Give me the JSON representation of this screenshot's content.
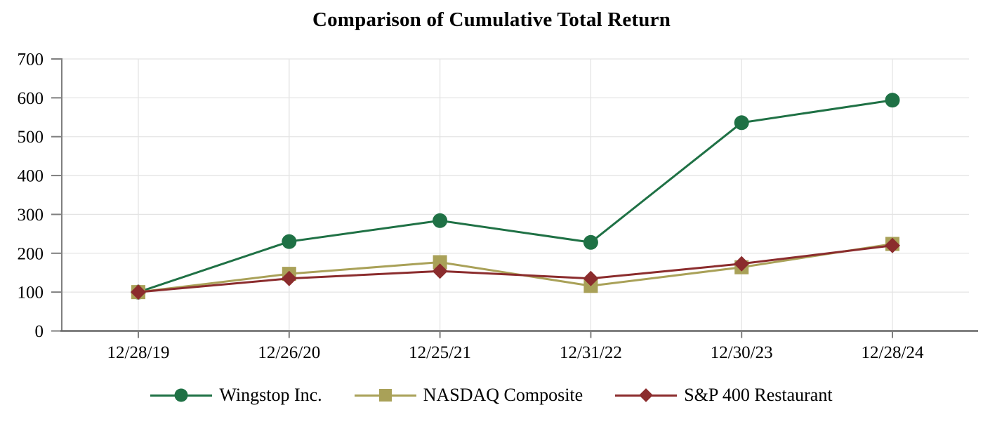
{
  "title": "Comparison of Cumulative Total Return",
  "chart_data": {
    "type": "line",
    "title": "Comparison of Cumulative Total Return",
    "categories": [
      "12/28/19",
      "12/26/20",
      "12/25/21",
      "12/31/22",
      "12/30/23",
      "12/28/24"
    ],
    "series": [
      {
        "name": "Wingstop Inc.",
        "marker": "circle",
        "color": "#1F7145",
        "values": [
          100,
          230,
          284,
          228,
          536,
          594
        ]
      },
      {
        "name": "NASDAQ Composite",
        "marker": "square",
        "color": "#A9A158",
        "values": [
          100,
          147,
          177,
          116,
          164,
          224
        ]
      },
      {
        "name": "S&P 400 Restaurant",
        "marker": "diamond",
        "color": "#8B2C2D",
        "values": [
          100,
          135,
          154,
          135,
          173,
          220
        ]
      }
    ],
    "ylim": [
      0,
      700
    ],
    "yticks": [
      0,
      100,
      200,
      300,
      400,
      500,
      600,
      700
    ],
    "xlabel": "",
    "ylabel": "",
    "grid": true,
    "legend_position": "bottom",
    "axis_color": "#7F7F7F",
    "x_axis_color": "#666666",
    "grid_color": "#E4E4E4",
    "tick_label_color": "#000000"
  }
}
